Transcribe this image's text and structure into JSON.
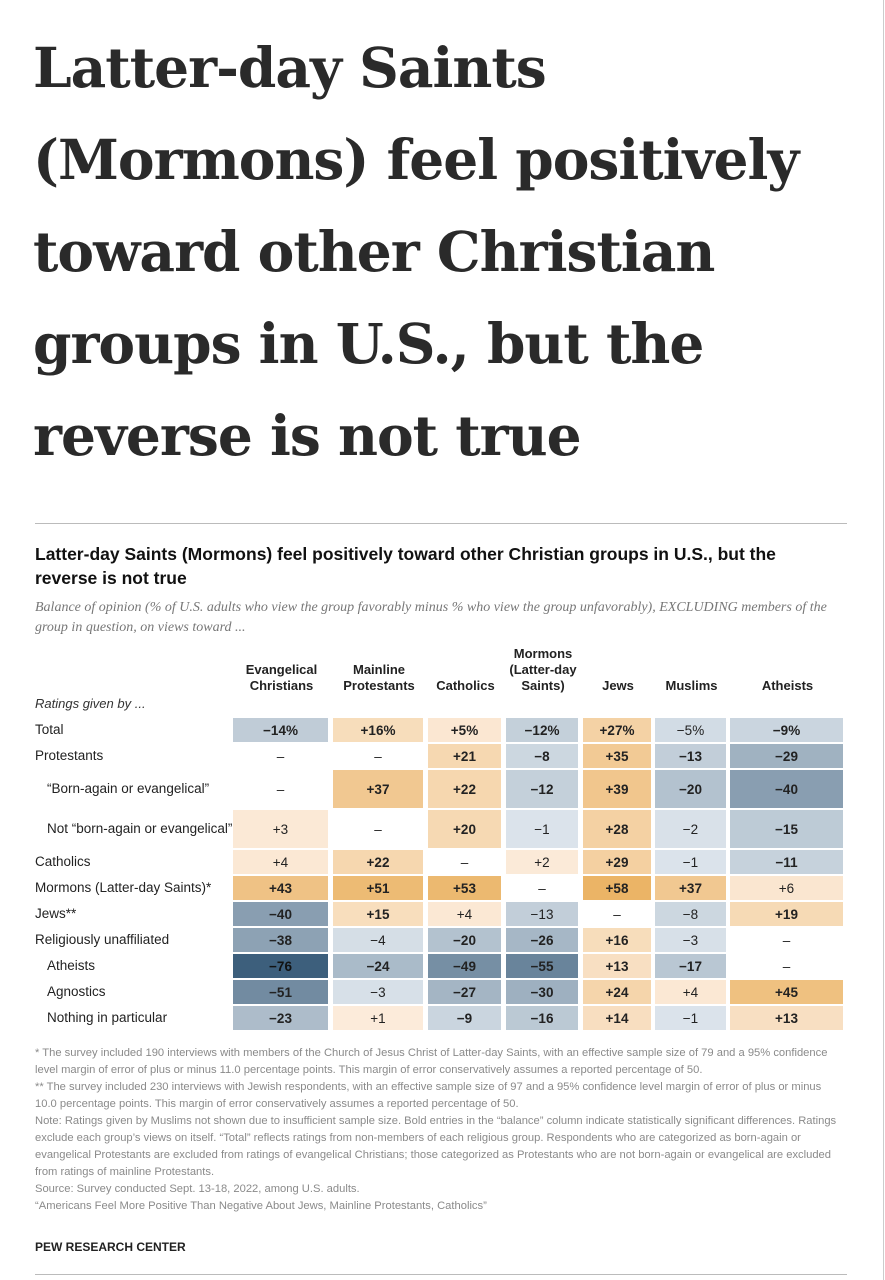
{
  "headline": "Latter-day Saints (Mormons) feel positively toward other Christian groups in U.S., but the reverse is not true",
  "chart_data": {
    "type": "heatmap",
    "title": "Latter-day Saints (Mormons) feel positively toward other Christian groups in U.S., but the reverse is not true",
    "subtitle": "Balance of opinion (% of U.S. adults who view the group favorably minus % who view the group unfavorably), EXCLUDING members of the group in question, on views toward ...",
    "row_header": "Ratings given by ...",
    "columns": [
      "Evangelical Christians",
      "Mainline Protestants",
      "Catholics",
      "Mormons (Latter-day Saints)",
      "Jews",
      "Muslims",
      "Atheists"
    ],
    "rows": [
      {
        "label": "Total",
        "indent": false,
        "values": [
          "−14%",
          "+16%",
          "+5%",
          "−12%",
          "+27%",
          "−5%",
          "−9%"
        ],
        "numeric": [
          -14,
          16,
          5,
          -12,
          27,
          -5,
          -9
        ],
        "bold": [
          1,
          1,
          1,
          1,
          1,
          0,
          1
        ]
      },
      {
        "label": "Protestants",
        "indent": false,
        "values": [
          "–",
          "–",
          "+21",
          "−8",
          "+35",
          "−13",
          "−29"
        ],
        "numeric": [
          null,
          null,
          21,
          -8,
          35,
          -13,
          -29
        ],
        "bold": [
          0,
          0,
          1,
          1,
          1,
          1,
          1
        ]
      },
      {
        "label": "“Born-again or evangelical”",
        "indent": true,
        "values": [
          "–",
          "+37",
          "+22",
          "−12",
          "+39",
          "−20",
          "−40"
        ],
        "numeric": [
          null,
          37,
          22,
          -12,
          39,
          -20,
          -40
        ],
        "bold": [
          0,
          1,
          1,
          1,
          1,
          1,
          1
        ]
      },
      {
        "label": "Not “born-again or evangelical”",
        "indent": true,
        "values": [
          "+3",
          "–",
          "+20",
          "−1",
          "+28",
          "−2",
          "−15"
        ],
        "numeric": [
          3,
          null,
          20,
          -1,
          28,
          -2,
          -15
        ],
        "bold": [
          0,
          0,
          1,
          0,
          1,
          0,
          1
        ]
      },
      {
        "label": "Catholics",
        "indent": false,
        "values": [
          "+4",
          "+22",
          "–",
          "+2",
          "+29",
          "−1",
          "−11"
        ],
        "numeric": [
          4,
          22,
          null,
          2,
          29,
          -1,
          -11
        ],
        "bold": [
          0,
          1,
          0,
          0,
          1,
          0,
          1
        ]
      },
      {
        "label": "Mormons (Latter-day Saints)*",
        "indent": false,
        "values": [
          "+43",
          "+51",
          "+53",
          "–",
          "+58",
          "+37",
          "+6"
        ],
        "numeric": [
          43,
          51,
          53,
          null,
          58,
          37,
          6
        ],
        "bold": [
          1,
          1,
          1,
          0,
          1,
          1,
          0
        ]
      },
      {
        "label": "Jews**",
        "indent": false,
        "values": [
          "−40",
          "+15",
          "+4",
          "−13",
          "–",
          "−8",
          "+19"
        ],
        "numeric": [
          -40,
          15,
          4,
          -13,
          null,
          -8,
          19
        ],
        "bold": [
          1,
          1,
          0,
          0,
          0,
          0,
          1
        ]
      },
      {
        "label": "Religiously unaffiliated",
        "indent": false,
        "values": [
          "−38",
          "−4",
          "−20",
          "−26",
          "+16",
          "−3",
          "–"
        ],
        "numeric": [
          -38,
          -4,
          -20,
          -26,
          16,
          -3,
          null
        ],
        "bold": [
          1,
          0,
          1,
          1,
          1,
          0,
          0
        ]
      },
      {
        "label": "Atheists",
        "indent": true,
        "values": [
          "−76",
          "−24",
          "−49",
          "−55",
          "+13",
          "−17",
          "–"
        ],
        "numeric": [
          -76,
          -24,
          -49,
          -55,
          13,
          -17,
          null
        ],
        "bold": [
          1,
          1,
          1,
          1,
          1,
          1,
          0
        ]
      },
      {
        "label": "Agnostics",
        "indent": true,
        "values": [
          "−51",
          "−3",
          "−27",
          "−30",
          "+24",
          "+4",
          "+45"
        ],
        "numeric": [
          -51,
          -3,
          -27,
          -30,
          24,
          4,
          45
        ],
        "bold": [
          1,
          0,
          1,
          1,
          1,
          0,
          1
        ]
      },
      {
        "label": "Nothing in particular",
        "indent": true,
        "values": [
          "−23",
          "+1",
          "−9",
          "−16",
          "+14",
          "−1",
          "+13"
        ],
        "numeric": [
          -23,
          1,
          -9,
          -16,
          14,
          -1,
          13
        ],
        "bold": [
          1,
          0,
          1,
          1,
          1,
          0,
          1
        ]
      }
    ],
    "colors": {
      "negative_light": "#dde5ec",
      "negative_dark": "#3d5f7c",
      "positive_light": "#fcecdc",
      "positive_dark": "#ebb466",
      "empty": "#ffffff"
    }
  },
  "notes": [
    "* The survey included 190 interviews with members of the Church of Jesus Christ of Latter-day Saints, with an effective sample size of 79 and a 95% confidence level margin of error of plus or minus 11.0 percentage points. This margin of error conservatively assumes a reported percentage of 50.",
    "** The survey included 230 interviews with Jewish respondents, with an effective sample size of 97 and a 95% confidence level margin of error of plus or minus 10.0 percentage points. This margin of error conservatively assumes a reported percentage of 50.",
    "Note: Ratings given by Muslims not shown due to insufficient sample size. Bold entries in the “balance” column indicate statistically significant differences. Ratings exclude each group’s views on itself. “Total” reflects ratings from non-members of each religious group. Respondents who are categorized as born-again or evangelical Protestants are excluded from ratings of evangelical Christians; those categorized as Protestants who are not born-again or evangelical are excluded from ratings of mainline Protestants.",
    "Source: Survey conducted Sept. 13-18, 2022, among U.S. adults.",
    "“Americans Feel More Positive Than Negative About Jews, Mainline Protestants, Catholics”"
  ],
  "brand": "PEW RESEARCH CENTER"
}
